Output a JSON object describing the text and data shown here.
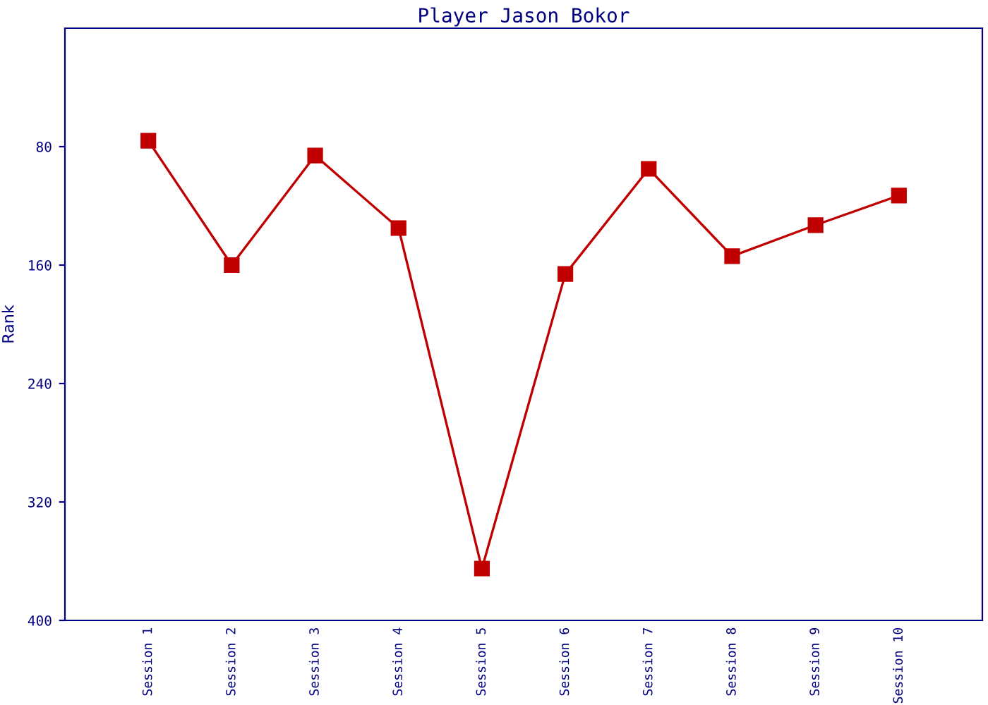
{
  "chart_data": {
    "type": "line",
    "title": "Player Jason Bokor",
    "ylabel": "Rank",
    "categories": [
      "Session 1",
      "Session 2",
      "Session 3",
      "Session 4",
      "Session 5",
      "Session 6",
      "Session 7",
      "Session 8",
      "Session 9",
      "Session 10"
    ],
    "series": [
      {
        "color": "#c00000",
        "values": [
          76,
          160,
          86,
          135,
          365,
          166,
          95,
          154,
          133,
          113
        ]
      }
    ],
    "ylim": [
      400,
      0
    ],
    "yticks": [
      80,
      160,
      240,
      320,
      400
    ],
    "grid": false,
    "legend": false,
    "marker": "square",
    "line_style": "solid"
  }
}
